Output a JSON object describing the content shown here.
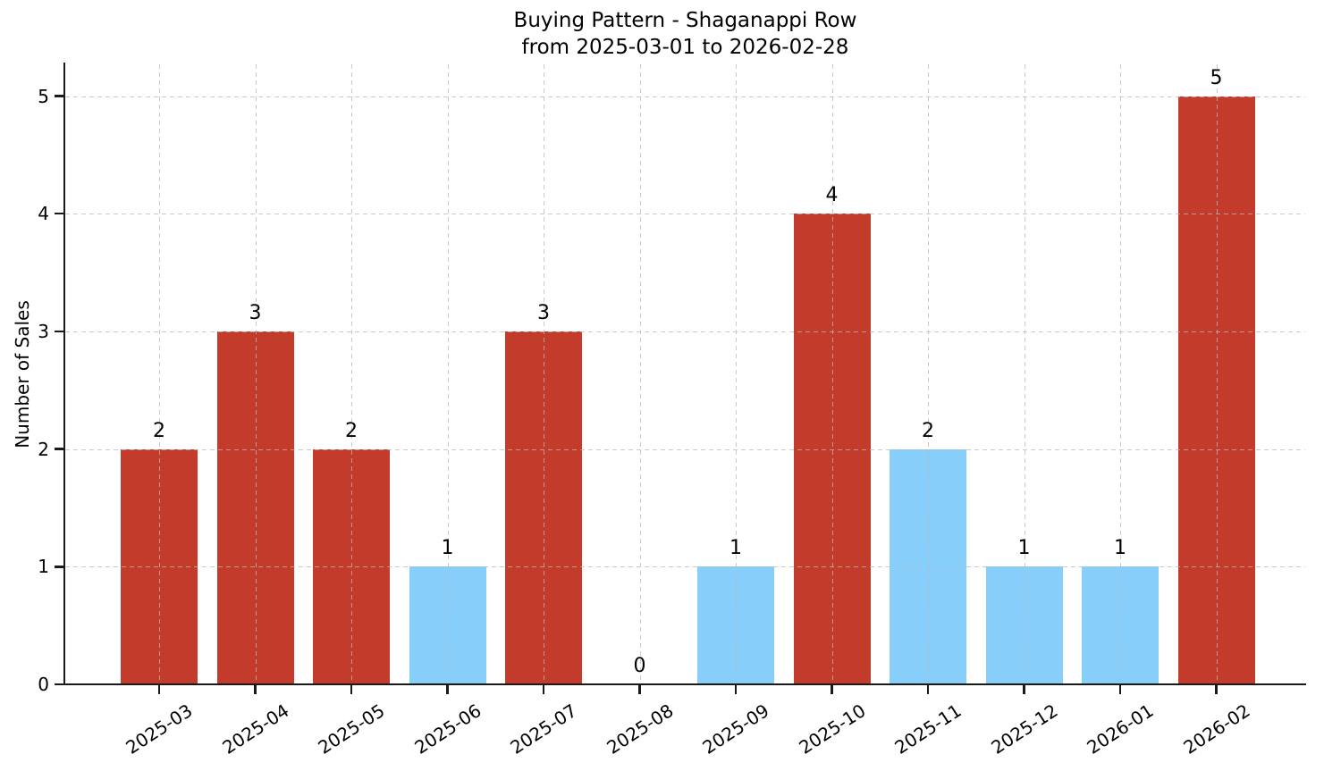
{
  "chart_data": {
    "type": "bar",
    "title": "Buying Pattern - Shaganappi Row",
    "subtitle": "from 2025-03-01 to 2026-02-28",
    "xlabel": "",
    "ylabel": "Number of Sales",
    "categories": [
      "2025-03",
      "2025-04",
      "2025-05",
      "2025-06",
      "2025-07",
      "2025-08",
      "2025-09",
      "2025-10",
      "2025-11",
      "2025-12",
      "2026-01",
      "2026-02"
    ],
    "values": [
      2,
      3,
      2,
      1,
      3,
      0,
      1,
      4,
      2,
      1,
      1,
      5
    ],
    "value_labels": [
      "2",
      "3",
      "2",
      "1",
      "3",
      "0",
      "1",
      "4",
      "2",
      "1",
      "1",
      "5"
    ],
    "bar_colors": [
      "#c23b2b",
      "#c23b2b",
      "#c23b2b",
      "#87cefa",
      "#c23b2b",
      "#c23b2b",
      "#87cefa",
      "#c23b2b",
      "#87cefa",
      "#87cefa",
      "#87cefa",
      "#c23b2b"
    ],
    "palette": {
      "high_color": "#c23b2b",
      "low_color": "#87cefa"
    },
    "y_ticks": [
      0,
      1,
      2,
      3,
      4,
      5
    ],
    "ylim": [
      0,
      5.27
    ],
    "grid": "dashed-both-axes",
    "legend": null,
    "x_tick_rotation_deg": 33
  }
}
